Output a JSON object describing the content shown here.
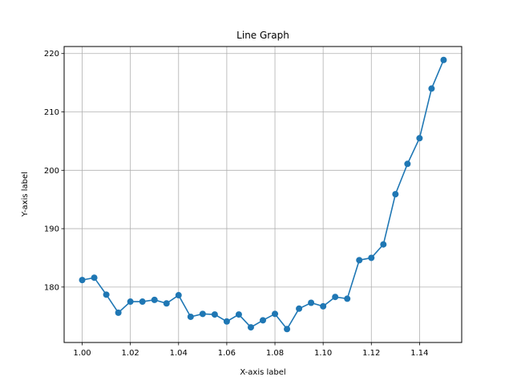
{
  "chart_data": {
    "type": "line",
    "title": "Line Graph",
    "xlabel": "X-axis label",
    "ylabel": "Y-axis label",
    "xlim": [
      0.9925,
      1.1575
    ],
    "ylim": [
      170.5,
      221.2
    ],
    "xticks": [
      1.0,
      1.02,
      1.04,
      1.06,
      1.08,
      1.1,
      1.12,
      1.14
    ],
    "xtick_labels": [
      "1.00",
      "1.02",
      "1.04",
      "1.06",
      "1.08",
      "1.10",
      "1.12",
      "1.14"
    ],
    "yticks": [
      180,
      190,
      200,
      210,
      220
    ],
    "ytick_labels": [
      "180",
      "190",
      "200",
      "210",
      "220"
    ],
    "grid": true,
    "color": "#1f77b4",
    "series": [
      {
        "x": [
          1.0,
          1.005,
          1.01,
          1.015,
          1.02,
          1.025,
          1.03,
          1.035,
          1.04,
          1.045,
          1.05,
          1.055,
          1.06,
          1.065,
          1.07,
          1.075,
          1.08,
          1.085,
          1.09,
          1.095,
          1.1,
          1.105,
          1.11,
          1.115,
          1.12,
          1.125,
          1.13,
          1.135,
          1.14,
          1.145,
          1.15
        ],
        "values": [
          181.2,
          181.6,
          178.7,
          175.6,
          177.5,
          177.5,
          177.8,
          177.2,
          178.6,
          174.9,
          175.4,
          175.3,
          174.1,
          175.3,
          173.1,
          174.3,
          175.4,
          172.8,
          176.3,
          177.3,
          176.7,
          178.3,
          178.0,
          184.6,
          185.0,
          187.3,
          195.9,
          201.1,
          205.5,
          214.0,
          218.9
        ]
      }
    ]
  }
}
